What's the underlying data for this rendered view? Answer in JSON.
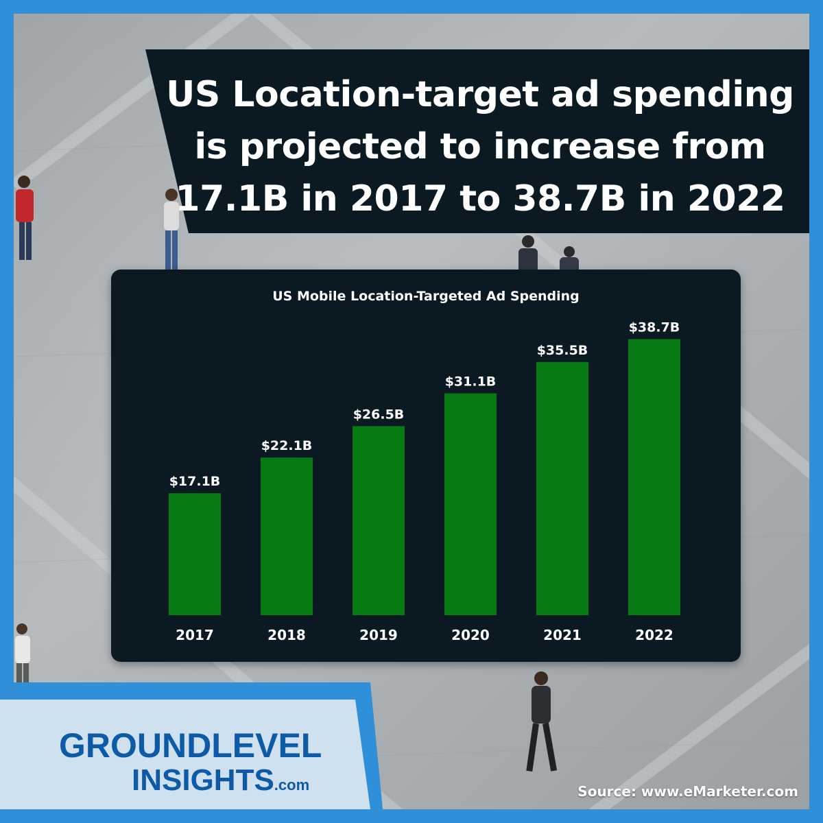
{
  "headline": {
    "line1": "US Location-target ad spending",
    "line2": "is projected to increase from",
    "line3": "17.1B in 2017 to 38.7B in 2022"
  },
  "chart_data": {
    "type": "bar",
    "title": "US Mobile Location-Targeted Ad Spending",
    "categories": [
      "2017",
      "2018",
      "2019",
      "2020",
      "2021",
      "2022"
    ],
    "values": [
      17.1,
      22.1,
      26.5,
      31.1,
      35.5,
      38.7
    ],
    "value_labels": [
      "$17.1B",
      "$22.1B",
      "$26.5B",
      "$31.1B",
      "$35.5B",
      "$38.7B"
    ],
    "xlabel": "",
    "ylabel": "",
    "grid": false,
    "legend": "none",
    "bar_color": "#087a14"
  },
  "logo": {
    "line1": "GROUNDLEVEL",
    "line2": "INSIGHTS",
    "suffix": ".com"
  },
  "source": "Source: www.eMarketer.com",
  "colors": {
    "frame": "#2f8fd8",
    "panel": "#0b1a22",
    "logo_text": "#0d5aa7",
    "logo_bg": "#cfe0ef"
  }
}
